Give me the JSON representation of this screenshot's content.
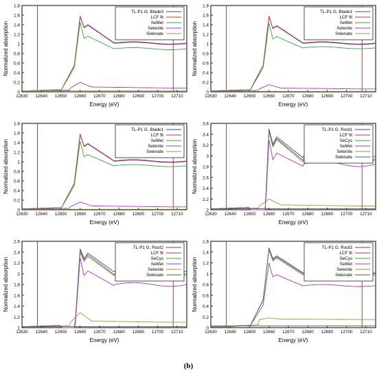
{
  "figure": {
    "caption": "(b)"
  },
  "chart_data": [
    {
      "type": "line",
      "legend_position": "top-right",
      "xlabel": "Energy    (eV)",
      "ylabel": "Normalized absorption",
      "xlim": [
        12630,
        12715
      ],
      "ylim": [
        0,
        1.8
      ],
      "yticks": [
        "0",
        "0.2",
        "0.4",
        "0.6",
        "0.8",
        "1",
        "1.2",
        "1.4",
        "1.6",
        "1.8"
      ],
      "xticks": [
        "12630",
        "12640",
        "12650",
        "12660",
        "12670",
        "12680",
        "12690",
        "12700",
        "12710"
      ],
      "vlines": [
        12638,
        12708
      ],
      "series": [
        {
          "name": "TL-P1 G. Blade3",
          "color": "#3344cc",
          "shape": "main",
          "peak": 1.58,
          "post": 1.4,
          "tail": 1.02
        },
        {
          "name": "LCF fit",
          "color": "#cc3333",
          "shape": "main",
          "peak": 1.57,
          "post": 1.39,
          "tail": 1.01
        },
        {
          "name": "SeMet",
          "color": "#33aa33",
          "shape": "main",
          "peak": 1.45,
          "post": 1.16,
          "tail": 0.9
        },
        {
          "name": "Selenite",
          "color": "#aa33cc",
          "shape": "bump",
          "peak": 0.2,
          "post": 0.1,
          "tail": 0.08
        },
        {
          "name": "Selenate",
          "color": "#999933",
          "shape": "flat",
          "peak": 0.02,
          "post": 0.02,
          "tail": 0.02
        }
      ]
    },
    {
      "type": "line",
      "legend_position": "top-right",
      "xlabel": "Energy    (eV)",
      "ylabel": "Normalized absorption",
      "xlim": [
        12630,
        12715
      ],
      "ylim": [
        0,
        1.8
      ],
      "yticks": [
        "0",
        "0.2",
        "0.4",
        "0.6",
        "0.8",
        "1",
        "1.2",
        "1.4",
        "1.6",
        "1.8"
      ],
      "xticks": [
        "12630",
        "12640",
        "12650",
        "12660",
        "12670",
        "12680",
        "12690",
        "12700",
        "12710"
      ],
      "vlines": [
        12638,
        12708
      ],
      "series": [
        {
          "name": "TL-P1 G. Blade1",
          "color": "#3344cc",
          "shape": "main",
          "peak": 1.58,
          "post": 1.38,
          "tail": 1.02
        },
        {
          "name": "LCF fit",
          "color": "#cc3333",
          "shape": "main",
          "peak": 1.57,
          "post": 1.37,
          "tail": 1.01
        },
        {
          "name": "SeMet",
          "color": "#33aa33",
          "shape": "main",
          "peak": 1.43,
          "post": 1.15,
          "tail": 0.92
        },
        {
          "name": "Selenite",
          "color": "#aa33cc",
          "shape": "bump",
          "peak": 0.15,
          "post": 0.08,
          "tail": 0.06
        },
        {
          "name": "Selenate",
          "color": "#999933",
          "shape": "flat",
          "peak": 0.01,
          "post": 0.01,
          "tail": 0.01
        }
      ]
    },
    {
      "type": "line",
      "legend_position": "top-right",
      "xlabel": "Energy    (eV)",
      "ylabel": "Normalized absorption",
      "xlim": [
        12630,
        12715
      ],
      "ylim": [
        0,
        1.8
      ],
      "yticks": [
        "0",
        "0.2",
        "0.4",
        "0.6",
        "0.8",
        "1",
        "1.2",
        "1.4",
        "1.6",
        "1.8"
      ],
      "xticks": [
        "12630",
        "12640",
        "12650",
        "12660",
        "12670",
        "12680",
        "12690",
        "12700",
        "12710"
      ],
      "vlines": [
        12638,
        12708
      ],
      "series": [
        {
          "name": "TL-P1 G. Blade1",
          "color": "#3344cc",
          "shape": "main",
          "peak": 1.58,
          "post": 1.38,
          "tail": 1.02
        },
        {
          "name": "LCF fit",
          "color": "#cc3333",
          "shape": "main",
          "peak": 1.57,
          "post": 1.37,
          "tail": 1.01
        },
        {
          "name": "SeMet",
          "color": "#33aa33",
          "shape": "main",
          "peak": 1.43,
          "post": 1.15,
          "tail": 0.92
        },
        {
          "name": "Selenite",
          "color": "#aa33cc",
          "shape": "bump",
          "peak": 0.16,
          "post": 0.08,
          "tail": 0.06
        },
        {
          "name": "Selenate",
          "color": "#999933",
          "shape": "flat",
          "peak": 0.01,
          "post": 0.01,
          "tail": 0.01
        }
      ]
    },
    {
      "type": "line",
      "legend_position": "top-right",
      "xlabel": "Energy    (eV)",
      "ylabel": "Normalized absorption",
      "xlim": [
        12630,
        12715
      ],
      "ylim": [
        2,
        3.6
      ],
      "yticks": [
        "2",
        "2.2",
        "2.4",
        "2.6",
        "2.8",
        "3",
        "3.2",
        "3.4",
        "3.6"
      ],
      "xticks": [
        "12630",
        "12640",
        "12650",
        "12660",
        "12670",
        "12680",
        "12690",
        "12700",
        "12710"
      ],
      "vlines": [
        12638,
        12708
      ],
      "series": [
        {
          "name": "TL-P1 G. Root1",
          "color": "#3344cc",
          "shape": "main",
          "peak": 3.5,
          "post": 3.35,
          "tail": 3.0
        },
        {
          "name": "LCF fit",
          "color": "#cc3333",
          "shape": "main",
          "peak": 3.48,
          "post": 3.32,
          "tail": 2.95
        },
        {
          "name": "SeCys",
          "color": "#33aa33",
          "shape": "main",
          "peak": 3.45,
          "post": 3.3,
          "tail": 2.92
        },
        {
          "name": "SeMet",
          "color": "#aa33cc",
          "shape": "main",
          "peak": 3.3,
          "post": 3.05,
          "tail": 2.85
        },
        {
          "name": "Selenite",
          "color": "#999933",
          "shape": "bump",
          "peak": 2.2,
          "post": 2.09,
          "tail": 2.07
        },
        {
          "name": "Selenate",
          "color": "#555555",
          "shape": "flat",
          "peak": 2.02,
          "post": 2.02,
          "tail": 2.02
        }
      ]
    },
    {
      "type": "line",
      "legend_position": "top-right",
      "xlabel": "Energy    (eV)",
      "ylabel": "Normalized absorption",
      "xlim": [
        12630,
        12715
      ],
      "ylim": [
        1,
        2.6
      ],
      "yticks": [
        "1",
        "1.2",
        "1.4",
        "1.6",
        "1.8",
        "2",
        "2.2",
        "2.4",
        "2.6"
      ],
      "xticks": [
        "12630",
        "12640",
        "12650",
        "12660",
        "12670",
        "12680",
        "12690",
        "12700",
        "12710"
      ],
      "vlines": [
        12638,
        12708
      ],
      "series": [
        {
          "name": "TL-P1 G. Root2",
          "color": "#3344cc",
          "shape": "main",
          "peak": 2.46,
          "post": 2.38,
          "tail": 2.05
        },
        {
          "name": "LCF fit",
          "color": "#cc3333",
          "shape": "main",
          "peak": 2.44,
          "post": 2.35,
          "tail": 2.0
        },
        {
          "name": "SeCys",
          "color": "#33aa33",
          "shape": "main",
          "peak": 2.4,
          "post": 2.32,
          "tail": 1.98
        },
        {
          "name": "SeMet",
          "color": "#aa33cc",
          "shape": "main",
          "peak": 2.3,
          "post": 2.05,
          "tail": 1.8
        },
        {
          "name": "Selenite",
          "color": "#999933",
          "shape": "bump",
          "peak": 1.28,
          "post": 1.12,
          "tail": 1.1
        },
        {
          "name": "Selenate",
          "color": "#555555",
          "shape": "flat",
          "peak": 1.02,
          "post": 1.02,
          "tail": 1.02
        }
      ]
    },
    {
      "type": "line",
      "legend_position": "top-right",
      "xlabel": "Energy    (eV)",
      "ylabel": "Normalized absorption",
      "xlim": [
        12630,
        12715
      ],
      "ylim": [
        0,
        1.6
      ],
      "yticks": [
        "0",
        "0.2",
        "0.4",
        "0.6",
        "0.8",
        "1",
        "1.2",
        "1.4",
        "1.6"
      ],
      "xticks": [
        "12630",
        "12640",
        "12650",
        "12660",
        "12670",
        "12680",
        "12690",
        "12700",
        "12710"
      ],
      "vlines": [
        12638,
        12708
      ],
      "series": [
        {
          "name": "TL-P1 G. Root3",
          "color": "#3344cc",
          "shape": "main",
          "peak": 1.48,
          "post": 1.33,
          "tail": 1.02
        },
        {
          "name": "LCF fit",
          "color": "#cc3333",
          "shape": "main",
          "peak": 1.46,
          "post": 1.31,
          "tail": 1.0
        },
        {
          "name": "SeCys",
          "color": "#33aa33",
          "shape": "main",
          "peak": 1.44,
          "post": 1.29,
          "tail": 0.98
        },
        {
          "name": "SeMet",
          "color": "#aa33cc",
          "shape": "main",
          "peak": 1.2,
          "post": 0.98,
          "tail": 0.78
        },
        {
          "name": "Selenite",
          "color": "#999933",
          "shape": "bump",
          "peak": 0.18,
          "post": 0.16,
          "tail": 0.15
        },
        {
          "name": "Selenate",
          "color": "#555555",
          "shape": "flat",
          "peak": 0.03,
          "post": 0.03,
          "tail": 0.03
        }
      ]
    }
  ]
}
